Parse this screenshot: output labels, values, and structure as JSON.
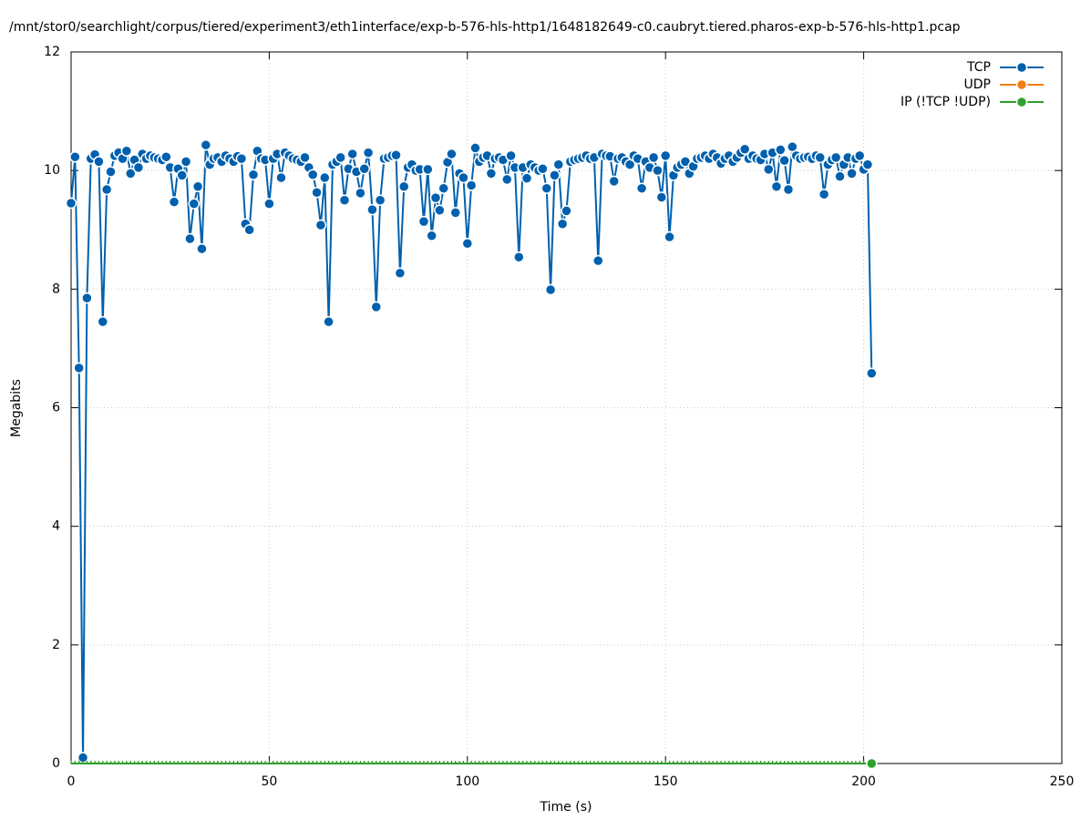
{
  "chart_data": {
    "type": "line",
    "title": "/mnt/stor0/searchlight/corpus/tiered/experiment3/eth1interface/exp-b-576-hls-http1/1648182649-c0.caubryt.tiered.pharos-exp-b-576-hls-http1.pcap",
    "x_label": "Time (s)",
    "y_label": "Megabits",
    "xlim": [
      0,
      250
    ],
    "xticks": [
      0,
      50,
      100,
      150,
      200,
      250
    ],
    "ylim": [
      0,
      12
    ],
    "yticks": [
      0,
      2,
      4,
      6,
      8,
      10,
      12
    ],
    "grid": true,
    "legend": "top-right",
    "x": [
      0,
      1,
      2,
      3,
      4,
      5,
      6,
      7,
      8,
      9,
      10,
      11,
      12,
      13,
      14,
      15,
      16,
      17,
      18,
      19,
      20,
      21,
      22,
      23,
      24,
      25,
      26,
      27,
      28,
      29,
      30,
      31,
      32,
      33,
      34,
      35,
      36,
      37,
      38,
      39,
      40,
      41,
      42,
      43,
      44,
      45,
      46,
      47,
      48,
      49,
      50,
      51,
      52,
      53,
      54,
      55,
      56,
      57,
      58,
      59,
      60,
      61,
      62,
      63,
      64,
      65,
      66,
      67,
      68,
      69,
      70,
      71,
      72,
      73,
      74,
      75,
      76,
      77,
      78,
      79,
      80,
      81,
      82,
      83,
      84,
      85,
      86,
      87,
      88,
      89,
      90,
      91,
      92,
      93,
      94,
      95,
      96,
      97,
      98,
      99,
      100,
      101,
      102,
      103,
      104,
      105,
      106,
      107,
      108,
      109,
      110,
      111,
      112,
      113,
      114,
      115,
      116,
      117,
      118,
      119,
      120,
      121,
      122,
      123,
      124,
      125,
      126,
      127,
      128,
      129,
      130,
      131,
      132,
      133,
      134,
      135,
      136,
      137,
      138,
      139,
      140,
      141,
      142,
      143,
      144,
      145,
      146,
      147,
      148,
      149,
      150,
      151,
      152,
      153,
      154,
      155,
      156,
      157,
      158,
      159,
      160,
      161,
      162,
      163,
      164,
      165,
      166,
      167,
      168,
      169,
      170,
      171,
      172,
      173,
      174,
      175,
      176,
      177,
      178,
      179,
      180,
      181,
      182,
      183,
      184,
      185,
      186,
      187,
      188,
      189,
      190,
      191,
      192,
      193,
      194,
      195,
      196,
      197,
      198,
      199,
      200,
      201,
      202
    ],
    "series": [
      {
        "name": "TCP",
        "color": "#0060ad",
        "values": [
          9.45,
          10.23,
          6.67,
          0.1,
          7.85,
          10.2,
          10.27,
          10.15,
          7.45,
          9.68,
          9.98,
          10.25,
          10.3,
          10.2,
          10.33,
          9.95,
          10.18,
          10.05,
          10.28,
          10.2,
          10.25,
          10.22,
          10.2,
          10.18,
          10.23,
          10.05,
          9.47,
          10.03,
          9.92,
          10.15,
          8.85,
          9.44,
          9.73,
          8.68,
          10.43,
          10.1,
          10.2,
          10.22,
          10.15,
          10.25,
          10.2,
          10.15,
          10.24,
          10.2,
          9.1,
          9.0,
          9.93,
          10.33,
          10.2,
          10.18,
          9.44,
          10.2,
          10.28,
          9.88,
          10.3,
          10.25,
          10.2,
          10.18,
          10.15,
          10.22,
          10.05,
          9.93,
          9.63,
          9.08,
          9.88,
          7.45,
          10.1,
          10.15,
          10.22,
          9.5,
          10.03,
          10.28,
          9.98,
          9.62,
          10.03,
          10.3,
          9.34,
          7.7,
          9.5,
          10.2,
          10.22,
          10.25,
          10.26,
          8.27,
          9.73,
          10.05,
          10.1,
          10.0,
          10.02,
          9.14,
          10.02,
          8.9,
          9.54,
          9.33,
          9.7,
          10.14,
          10.28,
          9.29,
          9.95,
          9.88,
          8.77,
          9.75,
          10.38,
          10.15,
          10.22,
          10.25,
          9.95,
          10.2,
          10.22,
          10.18,
          9.85,
          10.25,
          10.05,
          8.54,
          10.05,
          9.87,
          10.1,
          10.05,
          10.0,
          10.03,
          9.7,
          7.99,
          9.92,
          10.1,
          9.1,
          9.32,
          10.15,
          10.18,
          10.2,
          10.22,
          10.25,
          10.2,
          10.22,
          8.48,
          10.28,
          10.25,
          10.24,
          9.82,
          10.2,
          10.22,
          10.15,
          10.1,
          10.25,
          10.2,
          9.7,
          10.15,
          10.05,
          10.22,
          10.0,
          9.55,
          10.25,
          8.88,
          9.92,
          10.05,
          10.1,
          10.15,
          9.95,
          10.07,
          10.2,
          10.22,
          10.25,
          10.2,
          10.28,
          10.22,
          10.12,
          10.2,
          10.25,
          10.15,
          10.22,
          10.3,
          10.36,
          10.2,
          10.25,
          10.2,
          10.18,
          10.28,
          10.02,
          10.3,
          9.73,
          10.35,
          10.17,
          9.68,
          10.4,
          10.25,
          10.2,
          10.22,
          10.23,
          10.2,
          10.25,
          10.22,
          9.6,
          10.1,
          10.18,
          10.22,
          9.9,
          10.1,
          10.22,
          9.95,
          10.2,
          10.25,
          10.02,
          10.1,
          6.58
        ]
      },
      {
        "name": "UDP",
        "color": "#f07f10",
        "values": [
          0,
          0,
          0,
          0,
          0,
          0,
          0,
          0,
          0,
          0,
          0,
          0,
          0,
          0,
          0,
          0,
          0,
          0,
          0,
          0,
          0,
          0,
          0,
          0,
          0,
          0,
          0,
          0,
          0,
          0,
          0,
          0,
          0,
          0,
          0,
          0,
          0,
          0,
          0,
          0,
          0,
          0,
          0,
          0,
          0,
          0,
          0,
          0,
          0,
          0,
          0,
          0,
          0,
          0,
          0,
          0,
          0,
          0,
          0,
          0,
          0,
          0,
          0,
          0,
          0,
          0,
          0,
          0,
          0,
          0,
          0,
          0,
          0,
          0,
          0,
          0,
          0,
          0,
          0,
          0,
          0,
          0,
          0,
          0,
          0,
          0,
          0,
          0,
          0,
          0,
          0,
          0,
          0,
          0,
          0,
          0,
          0,
          0,
          0,
          0,
          0,
          0,
          0,
          0,
          0,
          0,
          0,
          0,
          0,
          0,
          0,
          0,
          0,
          0,
          0,
          0,
          0,
          0,
          0,
          0,
          0,
          0,
          0,
          0,
          0,
          0,
          0,
          0,
          0,
          0,
          0,
          0,
          0,
          0,
          0,
          0,
          0,
          0,
          0,
          0,
          0,
          0,
          0,
          0,
          0,
          0,
          0,
          0,
          0,
          0,
          0,
          0,
          0,
          0,
          0,
          0,
          0,
          0,
          0,
          0,
          0,
          0,
          0,
          0,
          0,
          0,
          0,
          0,
          0,
          0,
          0,
          0,
          0,
          0,
          0,
          0,
          0,
          0,
          0,
          0,
          0,
          0,
          0,
          0,
          0,
          0,
          0,
          0,
          0,
          0,
          0,
          0,
          0,
          0,
          0,
          0,
          0,
          0,
          0,
          0,
          0,
          0,
          0
        ]
      },
      {
        "name": "IP (!TCP  !UDP)",
        "color": "#2ca02c",
        "values": [
          0,
          0,
          0,
          0,
          0,
          0,
          0,
          0,
          0,
          0,
          0,
          0,
          0,
          0,
          0,
          0,
          0,
          0,
          0,
          0,
          0,
          0,
          0,
          0,
          0,
          0,
          0,
          0,
          0,
          0,
          0,
          0,
          0,
          0,
          0,
          0,
          0,
          0,
          0,
          0,
          0,
          0,
          0,
          0,
          0,
          0,
          0,
          0,
          0,
          0,
          0,
          0,
          0,
          0,
          0,
          0,
          0,
          0,
          0,
          0,
          0,
          0,
          0,
          0,
          0,
          0,
          0,
          0,
          0,
          0,
          0,
          0,
          0,
          0,
          0,
          0,
          0,
          0,
          0,
          0,
          0,
          0,
          0,
          0,
          0,
          0,
          0,
          0,
          0,
          0,
          0,
          0,
          0,
          0,
          0,
          0,
          0,
          0,
          0,
          0,
          0,
          0,
          0,
          0,
          0,
          0,
          0,
          0,
          0,
          0,
          0,
          0,
          0,
          0,
          0,
          0,
          0,
          0,
          0,
          0,
          0,
          0,
          0,
          0,
          0,
          0,
          0,
          0,
          0,
          0,
          0,
          0,
          0,
          0,
          0,
          0,
          0,
          0,
          0,
          0,
          0,
          0,
          0,
          0,
          0,
          0,
          0,
          0,
          0,
          0,
          0,
          0,
          0,
          0,
          0,
          0,
          0,
          0,
          0,
          0,
          0,
          0,
          0,
          0,
          0,
          0,
          0,
          0,
          0,
          0,
          0,
          0,
          0,
          0,
          0,
          0,
          0,
          0,
          0,
          0,
          0,
          0,
          0,
          0,
          0,
          0,
          0,
          0,
          0,
          0,
          0,
          0,
          0,
          0,
          0,
          0,
          0,
          0,
          0,
          0,
          0,
          0,
          0
        ]
      }
    ]
  }
}
